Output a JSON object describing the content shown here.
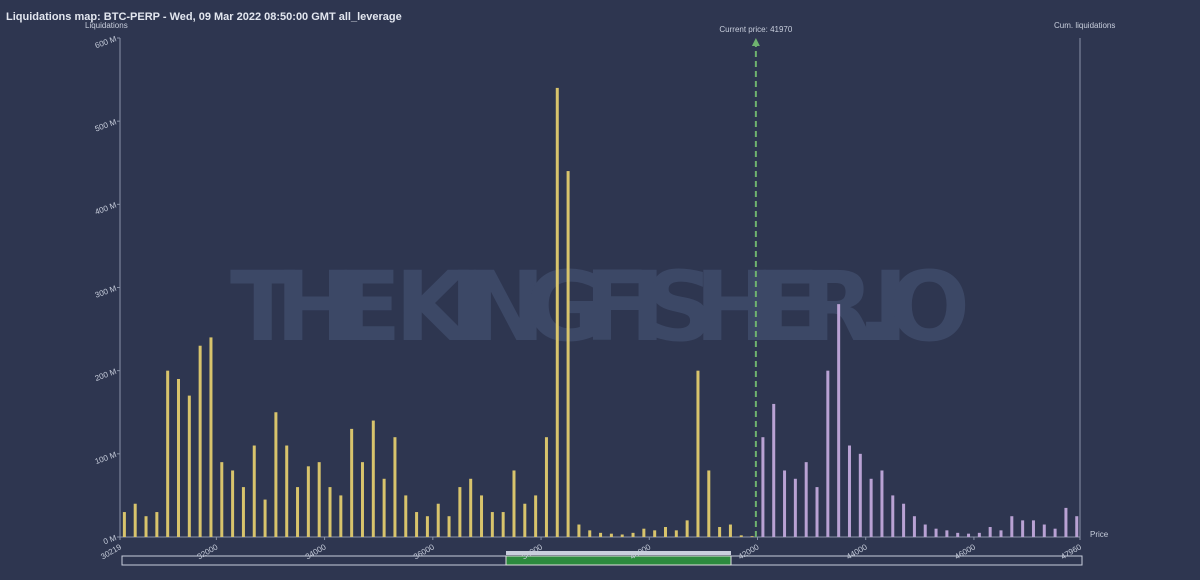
{
  "chart_data": {
    "type": "bar",
    "title": "Liquidations map: BTC-PERP - Wed, 09 Mar 2022 08:50:00 GMT all_leverage",
    "y_label": "Liquidations",
    "y2_label": "Cum. liquidations",
    "x_label": "Price",
    "watermark": "THE KINGFISHER.IO",
    "annotation": "Current price: 41970",
    "current_price": 41970,
    "xlim": [
      30219,
      47960
    ],
    "xticks": [
      30219,
      32000,
      34000,
      36000,
      38000,
      40000,
      42000,
      44000,
      46000,
      47960
    ],
    "ylim": [
      0,
      600
    ],
    "yticks": [
      {
        "value": 0,
        "label": "0 M"
      },
      {
        "value": 100,
        "label": "100 M"
      },
      {
        "value": 200,
        "label": "200 M"
      },
      {
        "value": 300,
        "label": "300 M"
      },
      {
        "value": 400,
        "label": "400 M"
      },
      {
        "value": 500,
        "label": "500 M"
      },
      {
        "value": 600,
        "label": "600 M"
      }
    ],
    "series": [
      {
        "color": "#d8c46c",
        "x": [
          30300,
          30500,
          30700,
          30900,
          31100,
          31300,
          31500,
          31700,
          31900,
          32100,
          32300,
          32500,
          32700,
          32900,
          33100,
          33300,
          33500,
          33700,
          33900,
          34100,
          34300,
          34500,
          34700,
          34900,
          35100,
          35300,
          35500,
          35700,
          35900,
          36100,
          36300,
          36500,
          36700,
          36900,
          37100,
          37300,
          37500,
          37700,
          37900,
          38100,
          38300,
          38500,
          38700,
          38900,
          39100,
          39300,
          39500,
          39700,
          39900,
          40100,
          40300,
          40500,
          40700,
          40900,
          41100,
          41300,
          41500,
          41700,
          41900
        ],
        "values": [
          30,
          40,
          25,
          30,
          200,
          190,
          170,
          230,
          240,
          90,
          80,
          60,
          110,
          45,
          150,
          110,
          60,
          85,
          90,
          60,
          50,
          130,
          90,
          140,
          70,
          120,
          50,
          30,
          25,
          40,
          25,
          60,
          70,
          50,
          30,
          30,
          80,
          40,
          50,
          120,
          540,
          440,
          15,
          8,
          5,
          4,
          3,
          5,
          10,
          8,
          12,
          8,
          20,
          200,
          80,
          12,
          15,
          2,
          1
        ]
      },
      {
        "color": "#b9a2d4",
        "x": [
          42100,
          42300,
          42500,
          42700,
          42900,
          43100,
          43300,
          43500,
          43700,
          43900,
          44100,
          44300,
          44500,
          44700,
          44900,
          45100,
          45300,
          45500,
          45700,
          45900,
          46100,
          46300,
          46500,
          46700,
          46900,
          47100,
          47300,
          47500,
          47700,
          47900
        ],
        "values": [
          120,
          160,
          80,
          70,
          90,
          60,
          200,
          280,
          110,
          100,
          70,
          80,
          50,
          40,
          25,
          15,
          10,
          8,
          5,
          4,
          5,
          12,
          8,
          25,
          20,
          20,
          15,
          10,
          35,
          25
        ]
      }
    ]
  }
}
